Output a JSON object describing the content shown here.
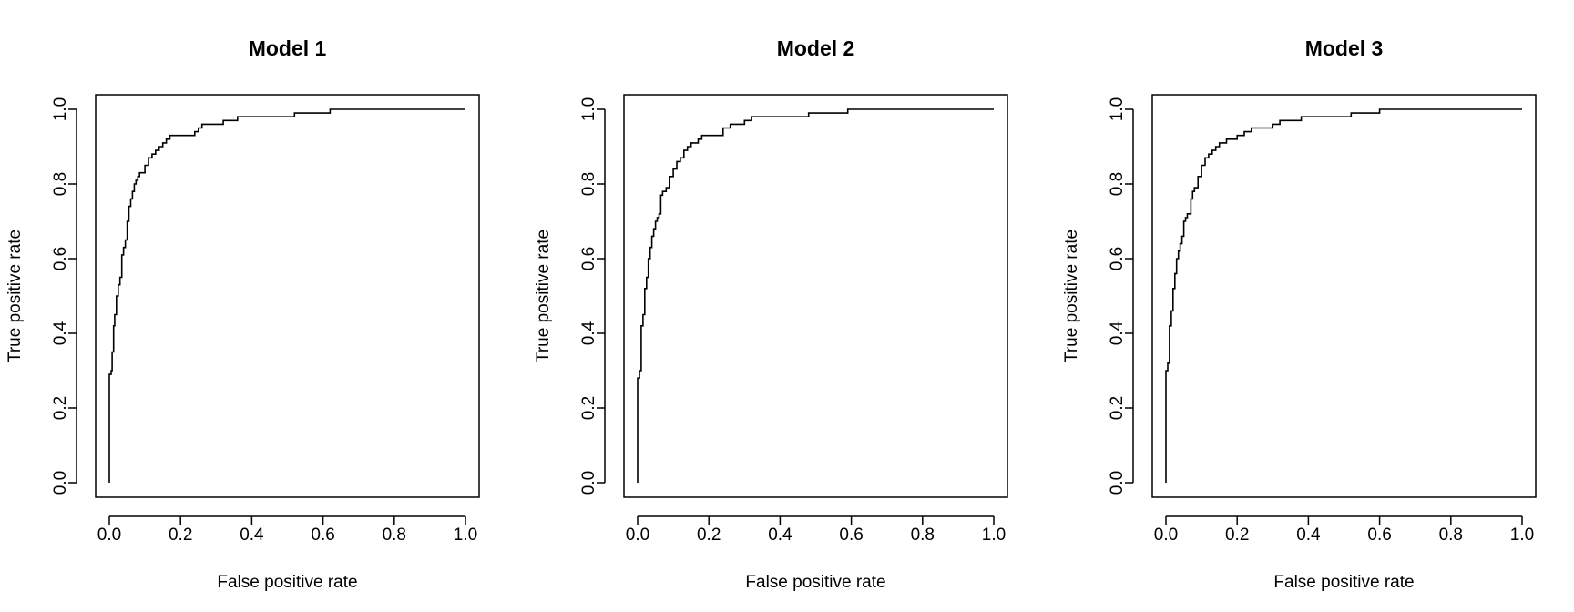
{
  "chart_data": [
    {
      "type": "line",
      "title": "Model 1",
      "xlabel": "False positive rate",
      "ylabel": "True positive rate",
      "xlim": [
        0,
        1
      ],
      "ylim": [
        0,
        1
      ],
      "xticks": [
        "0.0",
        "0.2",
        "0.4",
        "0.6",
        "0.8",
        "1.0"
      ],
      "yticks": [
        "0.0",
        "0.2",
        "0.4",
        "0.6",
        "0.8",
        "1.0"
      ],
      "grid": false,
      "legend": "none",
      "series": [
        {
          "x": [
            0.0,
            0.0,
            0.005,
            0.008,
            0.012,
            0.015,
            0.02,
            0.025,
            0.03,
            0.035,
            0.04,
            0.045,
            0.05,
            0.055,
            0.06,
            0.065,
            0.07,
            0.075,
            0.08,
            0.085,
            0.09,
            0.1,
            0.11,
            0.12,
            0.13,
            0.14,
            0.15,
            0.16,
            0.17,
            0.2,
            0.24,
            0.25,
            0.26,
            0.28,
            0.3,
            0.32,
            0.36,
            0.4,
            0.5,
            0.52,
            0.58,
            0.6,
            0.62,
            1.0
          ],
          "y": [
            0.0,
            0.29,
            0.3,
            0.35,
            0.42,
            0.45,
            0.5,
            0.53,
            0.55,
            0.61,
            0.63,
            0.65,
            0.7,
            0.74,
            0.76,
            0.78,
            0.8,
            0.81,
            0.82,
            0.83,
            0.83,
            0.85,
            0.87,
            0.88,
            0.89,
            0.9,
            0.91,
            0.92,
            0.93,
            0.93,
            0.94,
            0.95,
            0.96,
            0.96,
            0.96,
            0.97,
            0.98,
            0.98,
            0.98,
            0.99,
            0.99,
            0.99,
            1.0,
            1.0
          ]
        }
      ]
    },
    {
      "type": "line",
      "title": "Model 2",
      "xlabel": "False positive rate",
      "ylabel": "True positive rate",
      "xlim": [
        0,
        1
      ],
      "ylim": [
        0,
        1
      ],
      "xticks": [
        "0.0",
        "0.2",
        "0.4",
        "0.6",
        "0.8",
        "1.0"
      ],
      "yticks": [
        "0.0",
        "0.2",
        "0.4",
        "0.6",
        "0.8",
        "1.0"
      ],
      "grid": false,
      "legend": "none",
      "series": [
        {
          "x": [
            0.0,
            0.0,
            0.005,
            0.01,
            0.015,
            0.02,
            0.025,
            0.03,
            0.035,
            0.04,
            0.045,
            0.05,
            0.055,
            0.06,
            0.065,
            0.07,
            0.08,
            0.09,
            0.1,
            0.11,
            0.12,
            0.13,
            0.14,
            0.15,
            0.16,
            0.17,
            0.18,
            0.22,
            0.24,
            0.26,
            0.28,
            0.3,
            0.32,
            0.46,
            0.48,
            0.58,
            0.59,
            1.0
          ],
          "y": [
            0.0,
            0.28,
            0.3,
            0.42,
            0.45,
            0.52,
            0.55,
            0.6,
            0.63,
            0.66,
            0.68,
            0.7,
            0.71,
            0.72,
            0.77,
            0.78,
            0.79,
            0.82,
            0.84,
            0.86,
            0.87,
            0.89,
            0.9,
            0.91,
            0.91,
            0.92,
            0.93,
            0.93,
            0.95,
            0.96,
            0.96,
            0.97,
            0.98,
            0.98,
            0.99,
            0.99,
            1.0,
            1.0
          ]
        }
      ]
    },
    {
      "type": "line",
      "title": "Model 3",
      "xlabel": "False positive rate",
      "ylabel": "True positive rate",
      "xlim": [
        0,
        1
      ],
      "ylim": [
        0,
        1
      ],
      "xticks": [
        "0.0",
        "0.2",
        "0.4",
        "0.6",
        "0.8",
        "1.0"
      ],
      "yticks": [
        "0.0",
        "0.2",
        "0.4",
        "0.6",
        "0.8",
        "1.0"
      ],
      "grid": false,
      "legend": "none",
      "series": [
        {
          "x": [
            0.0,
            0.0,
            0.005,
            0.01,
            0.015,
            0.02,
            0.025,
            0.03,
            0.035,
            0.04,
            0.045,
            0.05,
            0.055,
            0.06,
            0.07,
            0.075,
            0.08,
            0.09,
            0.1,
            0.11,
            0.12,
            0.13,
            0.14,
            0.15,
            0.17,
            0.2,
            0.22,
            0.24,
            0.26,
            0.3,
            0.32,
            0.34,
            0.38,
            0.5,
            0.52,
            0.56,
            0.6,
            1.0
          ],
          "y": [
            0.0,
            0.3,
            0.32,
            0.42,
            0.46,
            0.52,
            0.56,
            0.6,
            0.62,
            0.64,
            0.66,
            0.7,
            0.71,
            0.72,
            0.76,
            0.78,
            0.79,
            0.82,
            0.85,
            0.87,
            0.88,
            0.89,
            0.9,
            0.91,
            0.92,
            0.93,
            0.94,
            0.95,
            0.95,
            0.96,
            0.97,
            0.97,
            0.98,
            0.98,
            0.99,
            0.99,
            1.0,
            1.0
          ]
        }
      ]
    }
  ]
}
